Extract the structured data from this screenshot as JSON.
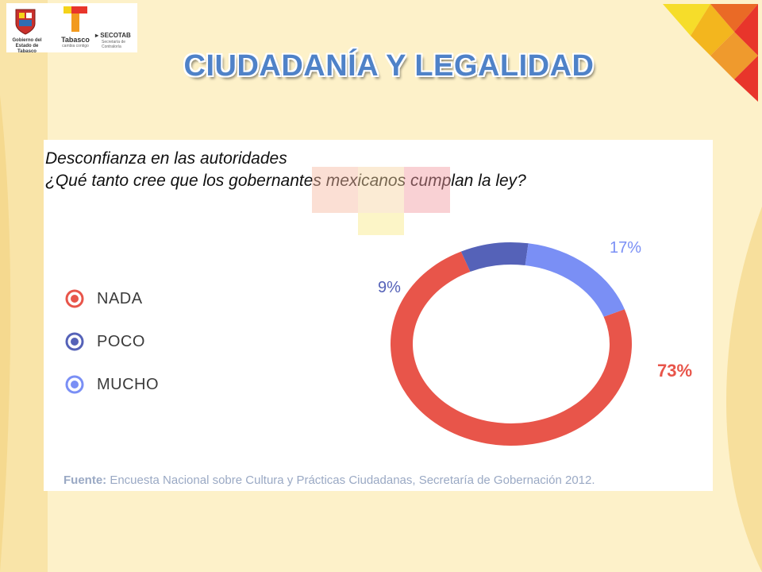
{
  "header": {
    "title": "CIUDADANÍA Y LEGALIDAD",
    "logos": {
      "seal_caption_line1": "Gobierno del",
      "seal_caption_line2": "Estado de Tabasco",
      "tabasco_name": "Tabasco",
      "tabasco_tagline": "cambia contigo",
      "secotab_name": "SECOTAB",
      "secotab_sub": "Secretaría de Contraloría"
    }
  },
  "subtitle": {
    "line1": "Desconfianza en las autoridades",
    "line2": "¿Qué tanto cree que los gobernantes mexicanos cumplan la ley?"
  },
  "chart_data": {
    "type": "pie",
    "title": "",
    "categories": [
      "NADA",
      "POCO",
      "MUCHO"
    ],
    "values": [
      73,
      9,
      17
    ],
    "labels": [
      "73%",
      "9%",
      "17%"
    ],
    "colors": [
      "#e8554a",
      "#5562b8",
      "#7a8ff5"
    ],
    "legend": "left"
  },
  "source": {
    "label": "Fuente:",
    "text": " Encuesta Nacional sobre Cultura y Prácticas Ciudadanas, Secretaría de Gobernación 2012."
  },
  "colors": {
    "background": "#fdf1c9",
    "title": "#4f82c8",
    "corner_red": "#e8352b",
    "corner_orange": "#f29a1e",
    "corner_yellow": "#f5d31a"
  }
}
